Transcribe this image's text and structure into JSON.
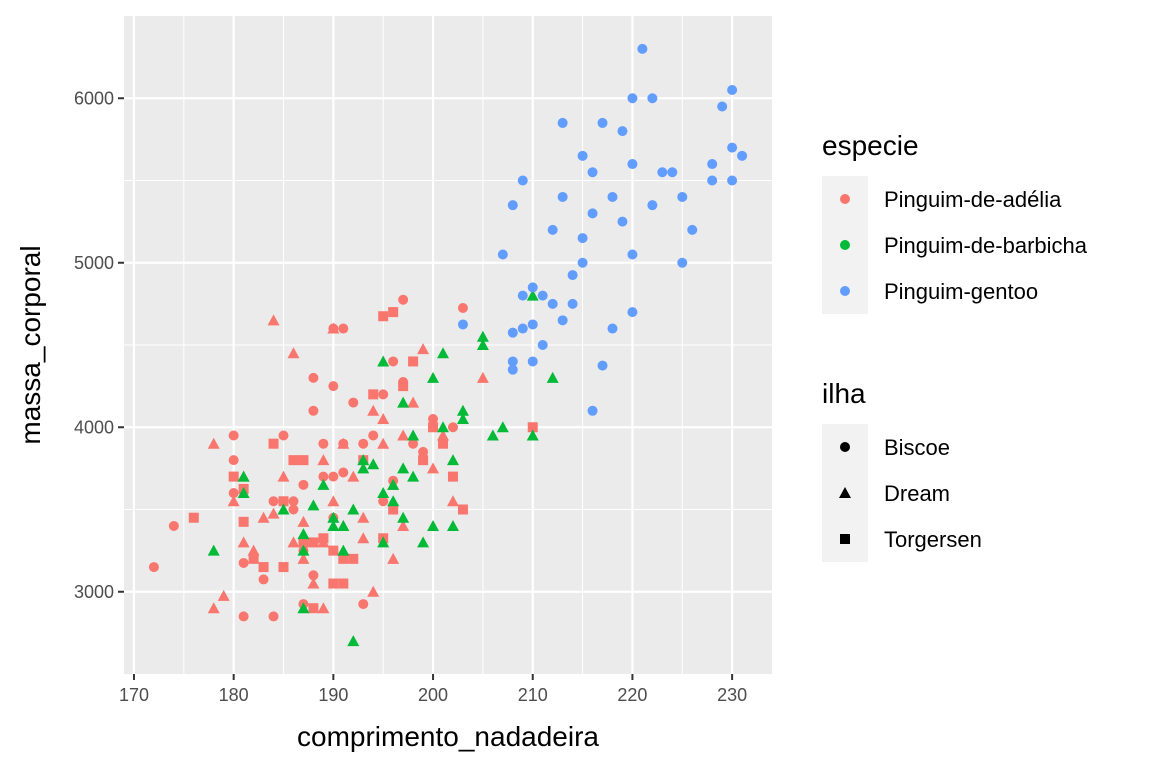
{
  "chart_data": {
    "type": "scatter",
    "title": "",
    "xlabel": "comprimento_nadadeira",
    "ylabel": "massa_corporal",
    "xlim": [
      169,
      234
    ],
    "ylim": [
      2500,
      6500
    ],
    "x_ticks": [
      170,
      180,
      190,
      200,
      210,
      220,
      230
    ],
    "y_ticks": [
      3000,
      4000,
      5000,
      6000
    ],
    "grid": true,
    "legend_placement": "right",
    "legends": [
      {
        "title": "especie",
        "type": "color",
        "entries": [
          {
            "label": "Pinguim-de-adélia",
            "color": "#F8766D"
          },
          {
            "label": "Pinguim-de-barbicha",
            "color": "#00BA38"
          },
          {
            "label": "Pinguim-gentoo",
            "color": "#619CFF"
          }
        ]
      },
      {
        "title": "ilha",
        "type": "shape",
        "entries": [
          {
            "label": "Biscoe",
            "shape": "circle"
          },
          {
            "label": "Dream",
            "shape": "triangle"
          },
          {
            "label": "Torgersen",
            "shape": "square"
          }
        ]
      }
    ],
    "series": [
      {
        "species": 0,
        "island": 0,
        "points": [
          [
            172,
            3150
          ],
          [
            174,
            3400
          ],
          [
            180,
            3800
          ],
          [
            180,
            3950
          ],
          [
            180,
            3600
          ],
          [
            181,
            3175
          ],
          [
            181,
            2850
          ],
          [
            183,
            3075
          ],
          [
            184,
            2850
          ],
          [
            184,
            3550
          ],
          [
            185,
            3950
          ],
          [
            186,
            3550
          ],
          [
            186,
            3500
          ],
          [
            187,
            3650
          ],
          [
            187,
            3250
          ],
          [
            187,
            2925
          ],
          [
            188,
            3100
          ],
          [
            188,
            4300
          ],
          [
            188,
            4100
          ],
          [
            189,
            3700
          ],
          [
            189,
            3900
          ],
          [
            190,
            3450
          ],
          [
            190,
            3700
          ],
          [
            190,
            4250
          ],
          [
            190,
            4600
          ],
          [
            191,
            3725
          ],
          [
            191,
            3900
          ],
          [
            191,
            4600
          ],
          [
            192,
            4150
          ],
          [
            193,
            3900
          ],
          [
            193,
            2925
          ],
          [
            194,
            3950
          ],
          [
            195,
            4200
          ],
          [
            195,
            3550
          ],
          [
            196,
            3675
          ],
          [
            196,
            4400
          ],
          [
            197,
            4775
          ],
          [
            197,
            4275
          ],
          [
            198,
            3900
          ],
          [
            199,
            3850
          ],
          [
            200,
            4050
          ],
          [
            202,
            4000
          ],
          [
            203,
            4725
          ]
        ]
      },
      {
        "species": 0,
        "island": 1,
        "points": [
          [
            178,
            3900
          ],
          [
            178,
            2900
          ],
          [
            179,
            2975
          ],
          [
            180,
            3550
          ],
          [
            181,
            3300
          ],
          [
            181,
            3700
          ],
          [
            182,
            3250
          ],
          [
            183,
            3450
          ],
          [
            184,
            3475
          ],
          [
            184,
            4650
          ],
          [
            185,
            3700
          ],
          [
            186,
            4450
          ],
          [
            186,
            3300
          ],
          [
            187,
            3425
          ],
          [
            187,
            3200
          ],
          [
            188,
            3050
          ],
          [
            189,
            3800
          ],
          [
            189,
            2900
          ],
          [
            189,
            3300
          ],
          [
            190,
            3550
          ],
          [
            190,
            4600
          ],
          [
            191,
            3400
          ],
          [
            191,
            3900
          ],
          [
            192,
            3700
          ],
          [
            193,
            3325
          ],
          [
            193,
            3450
          ],
          [
            194,
            4100
          ],
          [
            194,
            3000
          ],
          [
            195,
            4050
          ],
          [
            195,
            3900
          ],
          [
            196,
            3650
          ],
          [
            196,
            3200
          ],
          [
            197,
            3400
          ],
          [
            197,
            3950
          ],
          [
            198,
            4150
          ],
          [
            199,
            4475
          ],
          [
            200,
            3750
          ],
          [
            201,
            3950
          ],
          [
            202,
            3550
          ],
          [
            205,
            4300
          ]
        ]
      },
      {
        "species": 0,
        "island": 2,
        "points": [
          [
            176,
            3450
          ],
          [
            180,
            3700
          ],
          [
            181,
            3625
          ],
          [
            181,
            3425
          ],
          [
            182,
            3200
          ],
          [
            183,
            3150
          ],
          [
            184,
            3900
          ],
          [
            185,
            3150
          ],
          [
            185,
            3550
          ],
          [
            186,
            3800
          ],
          [
            187,
            3800
          ],
          [
            187,
            3300
          ],
          [
            188,
            3300
          ],
          [
            188,
            2900
          ],
          [
            189,
            3325
          ],
          [
            190,
            3250
          ],
          [
            190,
            3050
          ],
          [
            191,
            3050
          ],
          [
            191,
            3200
          ],
          [
            192,
            3200
          ],
          [
            193,
            3800
          ],
          [
            194,
            4200
          ],
          [
            195,
            4675
          ],
          [
            195,
            3325
          ],
          [
            196,
            4700
          ],
          [
            196,
            3500
          ],
          [
            197,
            4250
          ],
          [
            198,
            4400
          ],
          [
            199,
            3800
          ],
          [
            200,
            4000
          ],
          [
            201,
            3900
          ],
          [
            202,
            3700
          ],
          [
            203,
            3500
          ],
          [
            210,
            4000
          ]
        ]
      },
      {
        "species": 1,
        "island": 1,
        "points": [
          [
            178,
            3250
          ],
          [
            181,
            3700
          ],
          [
            181,
            3600
          ],
          [
            185,
            3500
          ],
          [
            187,
            3350
          ],
          [
            187,
            2900
          ],
          [
            187,
            3250
          ],
          [
            188,
            3525
          ],
          [
            189,
            3650
          ],
          [
            190,
            3400
          ],
          [
            190,
            3450
          ],
          [
            191,
            3400
          ],
          [
            191,
            3250
          ],
          [
            192,
            2700
          ],
          [
            192,
            3500
          ],
          [
            193,
            3750
          ],
          [
            193,
            3800
          ],
          [
            194,
            3775
          ],
          [
            195,
            4400
          ],
          [
            195,
            3600
          ],
          [
            195,
            3300
          ],
          [
            196,
            3650
          ],
          [
            196,
            3550
          ],
          [
            197,
            3750
          ],
          [
            197,
            3450
          ],
          [
            197,
            4150
          ],
          [
            198,
            3700
          ],
          [
            198,
            3950
          ],
          [
            199,
            3300
          ],
          [
            200,
            3400
          ],
          [
            200,
            4300
          ],
          [
            201,
            4450
          ],
          [
            201,
            4000
          ],
          [
            202,
            3400
          ],
          [
            202,
            3800
          ],
          [
            203,
            4050
          ],
          [
            203,
            4100
          ],
          [
            205,
            4500
          ],
          [
            205,
            4550
          ],
          [
            206,
            3950
          ],
          [
            207,
            4000
          ],
          [
            210,
            4800
          ],
          [
            210,
            3950
          ],
          [
            212,
            4300
          ]
        ]
      },
      {
        "species": 2,
        "island": 0,
        "points": [
          [
            203,
            4625
          ],
          [
            207,
            5050
          ],
          [
            208,
            4400
          ],
          [
            208,
            4350
          ],
          [
            208,
            4575
          ],
          [
            208,
            5350
          ],
          [
            209,
            4600
          ],
          [
            209,
            4800
          ],
          [
            209,
            5500
          ],
          [
            210,
            4625
          ],
          [
            210,
            4850
          ],
          [
            210,
            4400
          ],
          [
            211,
            4800
          ],
          [
            211,
            4500
          ],
          [
            212,
            5200
          ],
          [
            212,
            4750
          ],
          [
            213,
            4650
          ],
          [
            213,
            5400
          ],
          [
            213,
            5850
          ],
          [
            214,
            4925
          ],
          [
            214,
            4750
          ],
          [
            215,
            5150
          ],
          [
            215,
            5650
          ],
          [
            215,
            5000
          ],
          [
            216,
            4100
          ],
          [
            216,
            5300
          ],
          [
            216,
            5550
          ],
          [
            217,
            4375
          ],
          [
            217,
            5850
          ],
          [
            218,
            4600
          ],
          [
            218,
            5400
          ],
          [
            219,
            5250
          ],
          [
            219,
            5800
          ],
          [
            220,
            4700
          ],
          [
            220,
            5050
          ],
          [
            220,
            5600
          ],
          [
            220,
            6000
          ],
          [
            221,
            6300
          ],
          [
            222,
            5350
          ],
          [
            222,
            6000
          ],
          [
            223,
            5550
          ],
          [
            224,
            5550
          ],
          [
            225,
            5000
          ],
          [
            225,
            5400
          ],
          [
            226,
            5200
          ],
          [
            228,
            5500
          ],
          [
            228,
            5600
          ],
          [
            229,
            5950
          ],
          [
            230,
            5700
          ],
          [
            230,
            5500
          ],
          [
            230,
            6050
          ],
          [
            231,
            5650
          ]
        ]
      }
    ]
  }
}
